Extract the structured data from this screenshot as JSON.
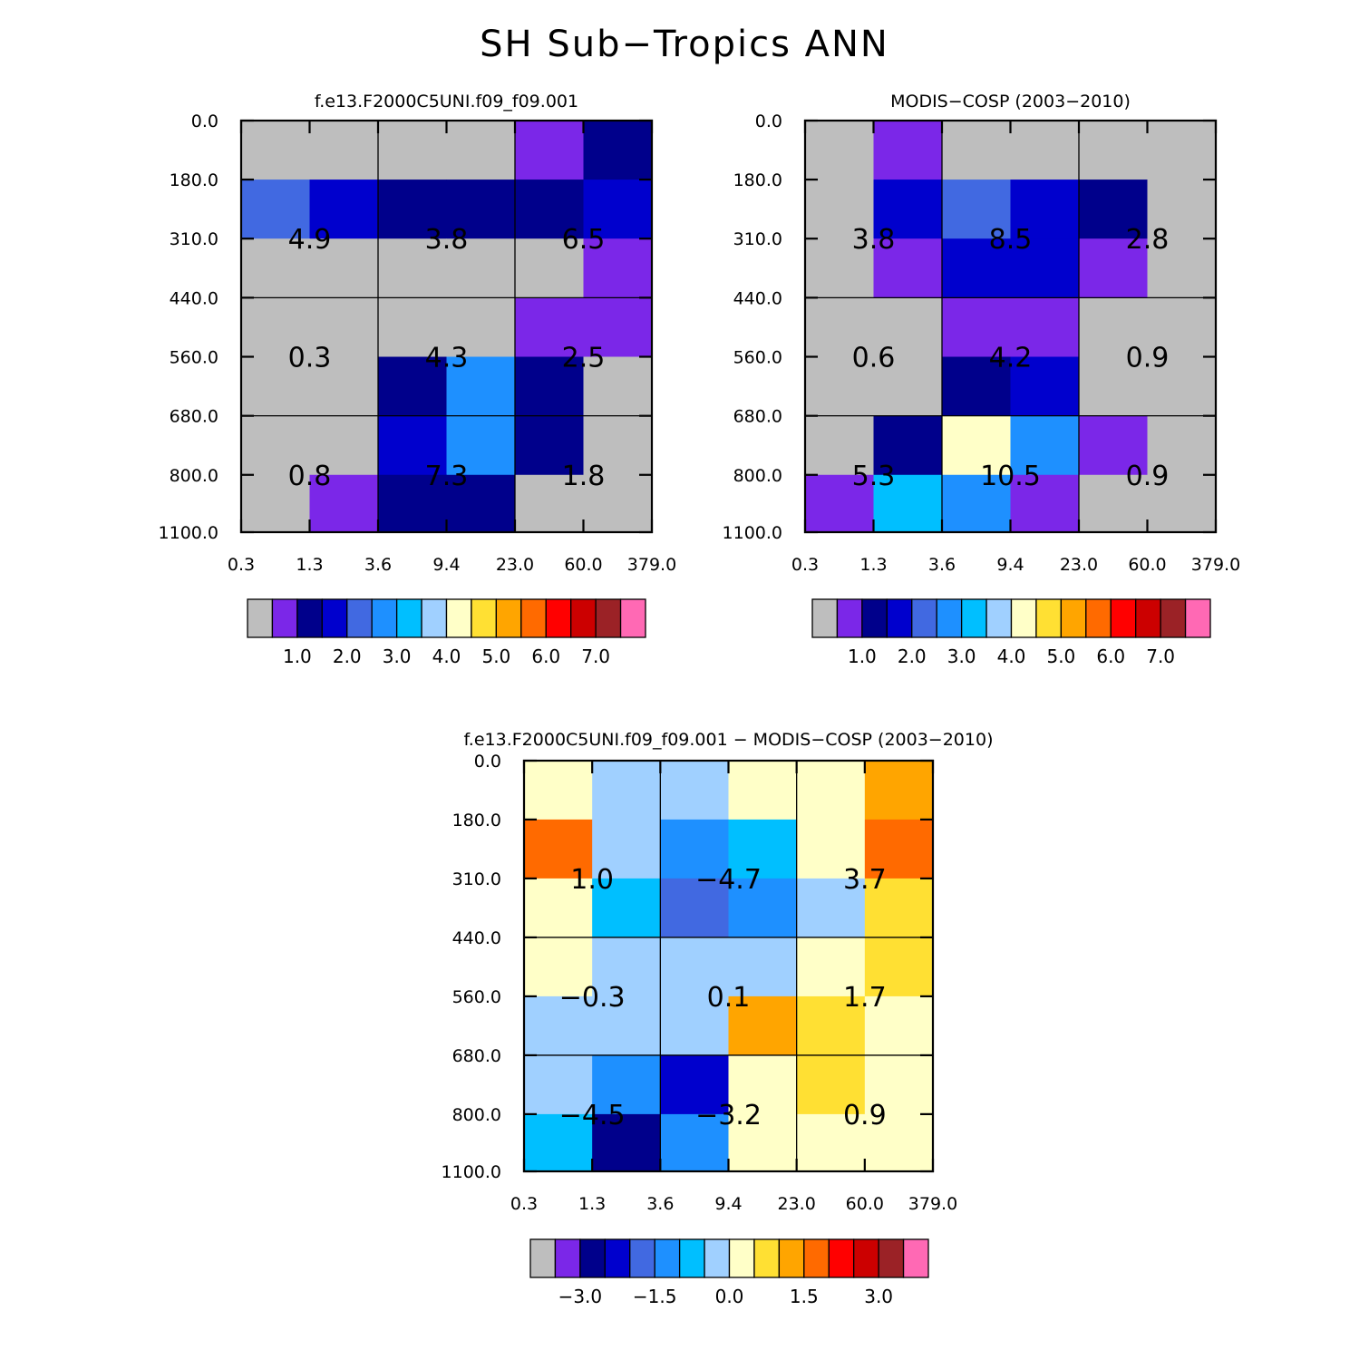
{
  "title": "SH Sub−Tropics ANN",
  "colors": {
    "gray": "#bebebe",
    "c1": "#7b27e8",
    "c2": "#00008b",
    "c3": "#0000cd",
    "c4": "#4169e1",
    "c5": "#1e90ff",
    "c6": "#00bfff",
    "c7": "#a0d0ff",
    "c8": "#ffffc8",
    "c9": "#ffe033",
    "c10": "#ffa500",
    "c11": "#ff6a00",
    "c12": "#ff0000",
    "c13": "#cc0000",
    "c14": "#9b2226",
    "c15": "#ff69b4"
  },
  "chart_data": [
    {
      "type": "heatmap",
      "title": "f.e13.F2000C5UNI.f09_f09.001",
      "x_tick_labels": [
        "0.3",
        "1.3",
        "3.6",
        "9.4",
        "23.0",
        "60.0",
        "379.0"
      ],
      "y_tick_labels": [
        "0.0",
        "180.0",
        "310.0",
        "440.0",
        "560.0",
        "680.0",
        "800.0",
        "1100.0"
      ],
      "cell_colors": [
        [
          "gray",
          "gray",
          "gray",
          "gray",
          "c1",
          "c2"
        ],
        [
          "c4",
          "c3",
          "c2",
          "c2",
          "c2",
          "c3"
        ],
        [
          "gray",
          "gray",
          "gray",
          "gray",
          "gray",
          "c1"
        ],
        [
          "gray",
          "gray",
          "gray",
          "gray",
          "c1",
          "c1"
        ],
        [
          "gray",
          "gray",
          "c2",
          "c5",
          "c2",
          "gray"
        ],
        [
          "gray",
          "gray",
          "c3",
          "c5",
          "c2",
          "gray"
        ],
        [
          "gray",
          "c1",
          "c2",
          "c2",
          "gray",
          "gray"
        ]
      ],
      "region_values": [
        [
          "4.9",
          "3.8",
          "6.5"
        ],
        [
          "0.3",
          "4.3",
          "2.5"
        ],
        [
          "0.8",
          "7.3",
          "1.8"
        ]
      ],
      "colorbar": {
        "colors": [
          "gray",
          "c1",
          "c2",
          "c3",
          "c4",
          "c5",
          "c6",
          "c7",
          "c8",
          "c9",
          "c10",
          "c11",
          "c12",
          "c13",
          "c14",
          "c15"
        ],
        "labels": [
          "1.0",
          "2.0",
          "3.0",
          "4.0",
          "5.0",
          "6.0",
          "7.0"
        ]
      }
    },
    {
      "type": "heatmap",
      "title": "MODIS−COSP (2003−2010)",
      "x_tick_labels": [
        "0.3",
        "1.3",
        "3.6",
        "9.4",
        "23.0",
        "60.0",
        "379.0"
      ],
      "y_tick_labels": [
        "0.0",
        "180.0",
        "310.0",
        "440.0",
        "560.0",
        "680.0",
        "800.0",
        "1100.0"
      ],
      "cell_colors": [
        [
          "gray",
          "c1",
          "gray",
          "gray",
          "gray",
          "gray"
        ],
        [
          "gray",
          "c3",
          "c4",
          "c3",
          "c2",
          "gray"
        ],
        [
          "gray",
          "c1",
          "c3",
          "c3",
          "c1",
          "gray"
        ],
        [
          "gray",
          "gray",
          "c1",
          "c1",
          "gray",
          "gray"
        ],
        [
          "gray",
          "gray",
          "c2",
          "c3",
          "gray",
          "gray"
        ],
        [
          "gray",
          "c2",
          "c8",
          "c5",
          "c1",
          "gray"
        ],
        [
          "c1",
          "c6",
          "c5",
          "c1",
          "gray",
          "gray"
        ]
      ],
      "region_values": [
        [
          "3.8",
          "8.5",
          "2.8"
        ],
        [
          "0.6",
          "4.2",
          "0.9"
        ],
        [
          "5.3",
          "10.5",
          "0.9"
        ]
      ],
      "colorbar": {
        "colors": [
          "gray",
          "c1",
          "c2",
          "c3",
          "c4",
          "c5",
          "c6",
          "c7",
          "c8",
          "c9",
          "c10",
          "c11",
          "c12",
          "c13",
          "c14",
          "c15"
        ],
        "labels": [
          "1.0",
          "2.0",
          "3.0",
          "4.0",
          "5.0",
          "6.0",
          "7.0"
        ]
      }
    },
    {
      "type": "heatmap",
      "title": "f.e13.F2000C5UNI.f09_f09.001 − MODIS−COSP (2003−2010)",
      "x_tick_labels": [
        "0.3",
        "1.3",
        "3.6",
        "9.4",
        "23.0",
        "60.0",
        "379.0"
      ],
      "y_tick_labels": [
        "0.0",
        "180.0",
        "310.0",
        "440.0",
        "560.0",
        "680.0",
        "800.0",
        "1100.0"
      ],
      "cell_colors": [
        [
          "c8",
          "c7",
          "c7",
          "c8",
          "c8",
          "c10"
        ],
        [
          "c11",
          "c7",
          "c5",
          "c6",
          "c8",
          "c11"
        ],
        [
          "c8",
          "c6",
          "c4",
          "c5",
          "c7",
          "c9"
        ],
        [
          "c8",
          "c7",
          "c7",
          "c7",
          "c8",
          "c9"
        ],
        [
          "c7",
          "c7",
          "c7",
          "c10",
          "c9",
          "c8"
        ],
        [
          "c7",
          "c5",
          "c3",
          "c8",
          "c9",
          "c8"
        ],
        [
          "c6",
          "c2",
          "c5",
          "c8",
          "c8",
          "c8"
        ]
      ],
      "region_values": [
        [
          "1.0",
          "−4.7",
          "3.7"
        ],
        [
          "−0.3",
          "0.1",
          "1.7"
        ],
        [
          "−4.5",
          "−3.2",
          "0.9"
        ]
      ],
      "colorbar": {
        "colors": [
          "gray",
          "c1",
          "c2",
          "c3",
          "c4",
          "c5",
          "c6",
          "c7",
          "c8",
          "c9",
          "c10",
          "c11",
          "c12",
          "c13",
          "c14",
          "c15"
        ],
        "labels": [
          "−3.0",
          "−1.5",
          "0.0",
          "1.5",
          "3.0"
        ]
      }
    }
  ]
}
